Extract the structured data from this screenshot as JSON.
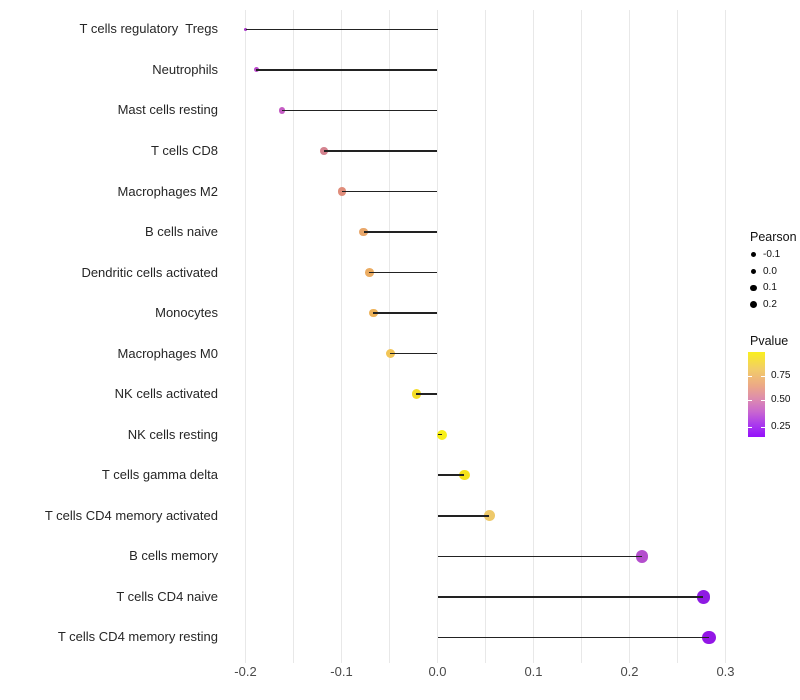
{
  "chart_data": {
    "type": "scatter",
    "variant": "lollipop",
    "title": "",
    "xlabel": "",
    "ylabel": "",
    "categories": [
      "T cells regulatory  Tregs",
      "Neutrophils",
      "Mast cells resting",
      "T cells CD8",
      "Macrophages M2",
      "B cells naive",
      "Dendritic cells activated",
      "Monocytes",
      "Macrophages M0",
      "NK cells activated",
      "NK cells resting",
      "T cells gamma delta",
      "T cells CD4 memory activated",
      "B cells memory",
      "T cells CD4 naive",
      "T cells CD4 memory resting"
    ],
    "series": [
      {
        "name": "Pearson",
        "values": [
          -0.2,
          -0.189,
          -0.162,
          -0.118,
          -0.099,
          -0.077,
          -0.071,
          -0.067,
          -0.049,
          -0.022,
          0.005,
          0.028,
          0.054,
          0.213,
          0.277,
          0.283
        ]
      }
    ],
    "point_colors": [
      "#a636c6",
      "#bb49cc",
      "#c55cc4",
      "#d4838f",
      "#e08d7b",
      "#e9a76a",
      "#ebac62",
      "#eeb35a",
      "#f2c556",
      "#f4dc28",
      "#f8ef18",
      "#f5e11c",
      "#eec96a",
      "#b44ecd",
      "#8f1be3",
      "#9316e6"
    ],
    "x_ticks": [
      "-0.2",
      "-0.1",
      "0.0",
      "0.1",
      "0.2",
      "0.3"
    ],
    "x_tick_values": [
      -0.2,
      -0.1,
      0.0,
      0.1,
      0.2,
      0.3
    ],
    "xlim": [
      -0.226,
      0.31
    ],
    "baseline": 0,
    "grid": "vertical-only, every 0.05",
    "legend_position": "right"
  },
  "legend": {
    "pearson": {
      "title": "Pearson",
      "entries": [
        "-0.1",
        "0.0",
        "0.1",
        "0.2"
      ]
    },
    "pvalue": {
      "title": "Pvalue",
      "ticks": [
        "0.75",
        "0.50",
        "0.25"
      ]
    }
  },
  "colors": {
    "background": "#ffffff",
    "gridline": "#e8e8e8",
    "stem": "#222222",
    "axis_text": "#4a4a4a",
    "legend_dot": "#000000",
    "pvalue_gradient_top": "#f9ef1e",
    "pvalue_gradient_mid": "#dd8cae",
    "pvalue_gradient_bottom": "#9410fb"
  }
}
